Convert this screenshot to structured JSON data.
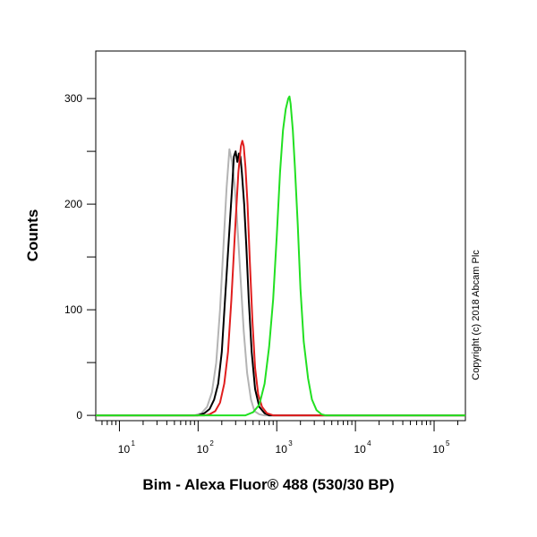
{
  "chart_data": {
    "type": "line",
    "xlabel": "Bim - Alexa Fluor® 488 (530/30 BP)",
    "ylabel": "Counts",
    "x_scale": "log",
    "xlim": [
      5,
      250000
    ],
    "ylim": [
      -5,
      345
    ],
    "x_ticks": [
      {
        "base": "10",
        "exp": "1",
        "value": 10
      },
      {
        "base": "10",
        "exp": "2",
        "value": 100
      },
      {
        "base": "10",
        "exp": "3",
        "value": 1000
      },
      {
        "base": "10",
        "exp": "4",
        "value": 10000
      },
      {
        "base": "10",
        "exp": "5",
        "value": 100000
      }
    ],
    "y_ticks": [
      0,
      100,
      200,
      300
    ],
    "grid": false,
    "legend": null,
    "copyright": "Copyright (c) 2018 Abcam Plc",
    "series": [
      {
        "color": "#b4b4b4",
        "points": [
          [
            5,
            0
          ],
          [
            90,
            0
          ],
          [
            110,
            2
          ],
          [
            130,
            8
          ],
          [
            150,
            22
          ],
          [
            170,
            50
          ],
          [
            190,
            100
          ],
          [
            210,
            160
          ],
          [
            230,
            215
          ],
          [
            250,
            252
          ],
          [
            270,
            240
          ],
          [
            290,
            220
          ],
          [
            310,
            190
          ],
          [
            340,
            140
          ],
          [
            380,
            80
          ],
          [
            420,
            40
          ],
          [
            470,
            15
          ],
          [
            520,
            4
          ],
          [
            600,
            1
          ],
          [
            700,
            0
          ],
          [
            250000,
            0
          ]
        ]
      },
      {
        "color": "#000000",
        "points": [
          [
            5,
            0
          ],
          [
            100,
            0
          ],
          [
            120,
            2
          ],
          [
            140,
            6
          ],
          [
            160,
            15
          ],
          [
            180,
            30
          ],
          [
            200,
            60
          ],
          [
            220,
            110
          ],
          [
            245,
            165
          ],
          [
            270,
            215
          ],
          [
            285,
            245
          ],
          [
            300,
            250
          ],
          [
            315,
            240
          ],
          [
            330,
            248
          ],
          [
            345,
            245
          ],
          [
            360,
            230
          ],
          [
            385,
            200
          ],
          [
            410,
            160
          ],
          [
            440,
            110
          ],
          [
            480,
            60
          ],
          [
            530,
            25
          ],
          [
            600,
            8
          ],
          [
            700,
            2
          ],
          [
            800,
            0
          ],
          [
            250000,
            0
          ]
        ]
      },
      {
        "color": "#e01e1e",
        "points": [
          [
            5,
            0
          ],
          [
            120,
            0
          ],
          [
            140,
            1
          ],
          [
            165,
            4
          ],
          [
            190,
            12
          ],
          [
            215,
            30
          ],
          [
            240,
            60
          ],
          [
            265,
            110
          ],
          [
            295,
            175
          ],
          [
            325,
            230
          ],
          [
            350,
            255
          ],
          [
            365,
            260
          ],
          [
            380,
            255
          ],
          [
            400,
            235
          ],
          [
            425,
            200
          ],
          [
            455,
            145
          ],
          [
            490,
            90
          ],
          [
            530,
            45
          ],
          [
            580,
            20
          ],
          [
            650,
            8
          ],
          [
            750,
            2
          ],
          [
            900,
            0
          ],
          [
            250000,
            0
          ]
        ]
      },
      {
        "color": "#22e022",
        "points": [
          [
            5,
            0
          ],
          [
            400,
            0
          ],
          [
            500,
            3
          ],
          [
            600,
            10
          ],
          [
            700,
            30
          ],
          [
            800,
            65
          ],
          [
            900,
            110
          ],
          [
            1000,
            170
          ],
          [
            1100,
            230
          ],
          [
            1200,
            270
          ],
          [
            1300,
            290
          ],
          [
            1400,
            300
          ],
          [
            1450,
            302
          ],
          [
            1500,
            295
          ],
          [
            1600,
            270
          ],
          [
            1700,
            235
          ],
          [
            1850,
            180
          ],
          [
            2000,
            120
          ],
          [
            2200,
            70
          ],
          [
            2500,
            35
          ],
          [
            2800,
            15
          ],
          [
            3200,
            5
          ],
          [
            3700,
            1
          ],
          [
            4200,
            0
          ],
          [
            250000,
            0
          ]
        ]
      }
    ]
  }
}
